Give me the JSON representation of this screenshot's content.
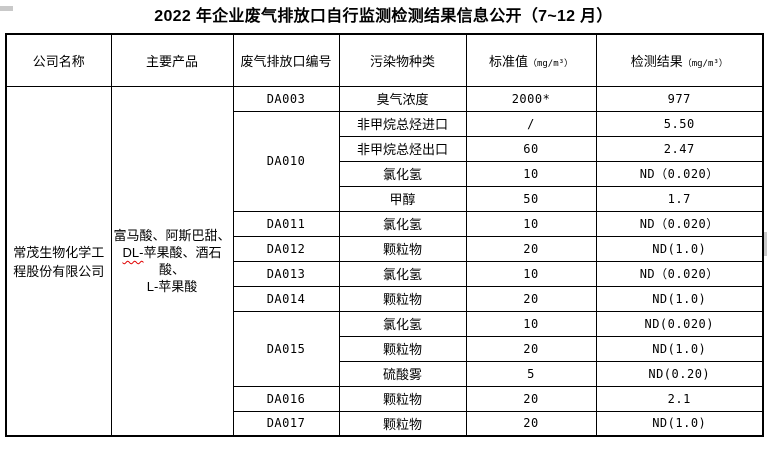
{
  "title": "2022 年企业废气排放口自行监测检测结果信息公开（7~12 月）",
  "colors": {
    "text": "#000000",
    "border": "#000000",
    "page_background": "#ffffff",
    "spellcheck_underline": "#e00000",
    "artifact_gray": "#c9c9c9"
  },
  "table": {
    "columns": [
      {
        "label": "公司名称"
      },
      {
        "label": "主要产品"
      },
      {
        "label": "废气排放口编号"
      },
      {
        "label": "污染物种类"
      },
      {
        "label": "标准值",
        "unit": "（mg/m³）"
      },
      {
        "label": "检测结果",
        "unit": "（mg/m³）"
      }
    ],
    "company": "常茂生物化学工程股份有限公司",
    "products": {
      "segments": [
        {
          "text": "富马酸、阿斯巴甜、",
          "break_after": true
        },
        {
          "text": "DL-",
          "squiggle": true
        },
        {
          "text": "苹果酸、酒石酸、",
          "break_after": true
        },
        {
          "text": "L-苹果酸"
        }
      ]
    },
    "outlets": [
      {
        "id": "DA003",
        "rows": [
          {
            "pollutant": "臭气浓度",
            "standard": "2000*",
            "result": "977"
          }
        ]
      },
      {
        "id": "DA010",
        "rows": [
          {
            "pollutant": "非甲烷总烃进口",
            "standard": "/",
            "result": "5.50"
          },
          {
            "pollutant": "非甲烷总烃出口",
            "standard": "60",
            "result": "2.47"
          },
          {
            "pollutant": "氯化氢",
            "standard": "10",
            "result": "ND（0.020）"
          },
          {
            "pollutant": "甲醇",
            "standard": "50",
            "result": "1.7"
          }
        ]
      },
      {
        "id": "DA011",
        "rows": [
          {
            "pollutant": "氯化氢",
            "standard": "10",
            "result": "ND（0.020）"
          }
        ]
      },
      {
        "id": "DA012",
        "rows": [
          {
            "pollutant": "颗粒物",
            "standard": "20",
            "result": "ND(1.0)"
          }
        ]
      },
      {
        "id": "DA013",
        "rows": [
          {
            "pollutant": "氯化氢",
            "standard": "10",
            "result": "ND（0.020）"
          }
        ]
      },
      {
        "id": "DA014",
        "rows": [
          {
            "pollutant": "颗粒物",
            "standard": "20",
            "result": "ND(1.0)"
          }
        ]
      },
      {
        "id": "DA015",
        "rows": [
          {
            "pollutant": "氯化氢",
            "standard": "10",
            "result": "ND(0.020)"
          },
          {
            "pollutant": "颗粒物",
            "standard": "20",
            "result": "ND(1.0)"
          },
          {
            "pollutant": "硫酸雾",
            "standard": "5",
            "result": "ND(0.20)"
          }
        ]
      },
      {
        "id": "DA016",
        "rows": [
          {
            "pollutant": "颗粒物",
            "standard": "20",
            "result": "2.1"
          }
        ]
      },
      {
        "id": "DA017",
        "rows": [
          {
            "pollutant": "颗粒物",
            "standard": "20",
            "result": "ND(1.0)"
          }
        ]
      }
    ]
  }
}
